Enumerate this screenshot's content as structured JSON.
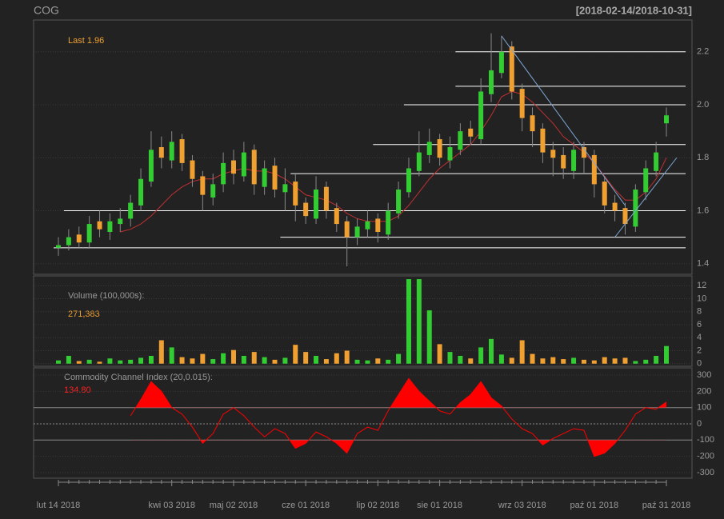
{
  "chart_data": [
    {
      "type": "candlestick",
      "title": "COG",
      "date_range": "[2018-02-14/2018-10-31]",
      "annotation": "Last 1.96",
      "categories": [
        "lut 14 2018",
        null,
        null,
        null,
        null,
        null,
        null,
        null,
        null,
        null,
        null,
        "kwi 03 2018",
        null,
        null,
        null,
        null,
        null,
        "maj 02 2018",
        null,
        null,
        null,
        null,
        null,
        null,
        "cze 01 2018",
        null,
        null,
        null,
        null,
        null,
        null,
        "lip 02 2018",
        null,
        null,
        null,
        null,
        null,
        "sie 01 2018",
        null,
        null,
        null,
        null,
        null,
        null,
        null,
        "wrz 03 2018",
        null,
        null,
        null,
        null,
        null,
        null,
        "paź 01 2018",
        null,
        null,
        null,
        null,
        null,
        null,
        "paź 31 2018"
      ],
      "open": [
        1.46,
        1.47,
        1.51,
        1.48,
        1.56,
        1.52,
        1.55,
        1.57,
        1.62,
        1.71,
        1.84,
        1.79,
        1.87,
        1.79,
        1.73,
        1.65,
        1.7,
        1.79,
        1.73,
        1.83,
        1.69,
        1.77,
        1.67,
        1.71,
        1.63,
        1.57,
        1.69,
        1.61,
        1.56,
        1.5,
        1.53,
        1.57,
        1.51,
        1.59,
        1.67,
        1.75,
        1.81,
        1.87,
        1.79,
        1.83,
        1.91,
        1.87,
        2.04,
        2.12,
        2.22,
        2.06,
        1.96,
        1.91,
        1.83,
        1.81,
        1.75,
        1.84,
        1.81,
        1.71,
        1.63,
        1.61,
        1.54,
        1.67,
        1.75,
        1.93
      ],
      "high": [
        1.5,
        1.53,
        1.54,
        1.58,
        1.6,
        1.59,
        1.61,
        1.66,
        1.76,
        1.9,
        1.88,
        1.9,
        1.89,
        1.81,
        1.75,
        1.74,
        1.82,
        1.83,
        1.86,
        1.85,
        1.79,
        1.8,
        1.76,
        1.74,
        1.65,
        1.73,
        1.71,
        1.63,
        1.58,
        1.57,
        1.6,
        1.59,
        1.63,
        1.71,
        1.8,
        1.9,
        1.91,
        1.89,
        1.88,
        1.93,
        1.94,
        2.1,
        2.27,
        2.26,
        2.24,
        2.08,
        1.99,
        1.93,
        1.86,
        1.84,
        1.86,
        1.86,
        1.83,
        1.73,
        1.66,
        1.63,
        1.7,
        1.79,
        1.86,
        1.99
      ],
      "low": [
        1.43,
        1.45,
        1.46,
        1.46,
        1.5,
        1.49,
        1.52,
        1.54,
        1.6,
        1.69,
        1.76,
        1.76,
        1.75,
        1.69,
        1.6,
        1.62,
        1.67,
        1.7,
        1.71,
        1.66,
        1.66,
        1.65,
        1.6,
        1.56,
        1.55,
        1.55,
        1.57,
        1.52,
        1.39,
        1.47,
        1.5,
        1.48,
        1.49,
        1.57,
        1.65,
        1.73,
        1.78,
        1.77,
        1.76,
        1.81,
        1.85,
        1.85,
        2.01,
        2.1,
        2.02,
        1.9,
        1.84,
        1.78,
        1.73,
        1.72,
        1.72,
        1.74,
        1.65,
        1.59,
        1.56,
        1.51,
        1.52,
        1.64,
        1.73,
        1.88
      ],
      "close": [
        1.47,
        1.5,
        1.48,
        1.55,
        1.53,
        1.56,
        1.57,
        1.63,
        1.72,
        1.83,
        1.8,
        1.86,
        1.78,
        1.72,
        1.66,
        1.7,
        1.78,
        1.74,
        1.82,
        1.7,
        1.76,
        1.68,
        1.7,
        1.62,
        1.58,
        1.68,
        1.6,
        1.55,
        1.5,
        1.54,
        1.56,
        1.52,
        1.6,
        1.68,
        1.76,
        1.82,
        1.86,
        1.8,
        1.84,
        1.9,
        1.88,
        2.05,
        2.13,
        2.2,
        2.05,
        1.95,
        1.9,
        1.82,
        1.8,
        1.76,
        1.83,
        1.8,
        1.7,
        1.62,
        1.6,
        1.55,
        1.68,
        1.76,
        1.82,
        1.96
      ],
      "up_color": "#33cc33",
      "down_color": "#f0a030",
      "ma": {
        "color": "#c03030",
        "values": [
          null,
          null,
          null,
          null,
          null,
          null,
          1.52,
          1.53,
          1.55,
          1.58,
          1.62,
          1.66,
          1.69,
          1.71,
          1.72,
          1.72,
          1.74,
          1.75,
          1.76,
          1.75,
          1.75,
          1.74,
          1.72,
          1.69,
          1.66,
          1.65,
          1.64,
          1.62,
          1.59,
          1.57,
          1.56,
          1.56,
          1.56,
          1.58,
          1.62,
          1.67,
          1.72,
          1.76,
          1.79,
          1.82,
          1.85,
          1.9,
          1.96,
          2.03,
          2.05,
          2.04,
          2.01,
          1.97,
          1.93,
          1.88,
          1.85,
          1.82,
          1.78,
          1.73,
          1.68,
          1.64,
          1.64,
          1.67,
          1.72,
          1.8
        ]
      },
      "hlines": [
        {
          "y": 1.46,
          "from": 0
        },
        {
          "y": 1.5,
          "from": 22
        },
        {
          "y": 1.6,
          "from": 1
        },
        {
          "y": 1.74,
          "from": 23
        },
        {
          "y": 1.85,
          "from": 31
        },
        {
          "y": 2.0,
          "from": 34
        },
        {
          "y": 2.07,
          "from": 39
        },
        {
          "y": 2.2,
          "from": 39
        }
      ],
      "trendlines": [
        {
          "x": [
            43,
            55
          ],
          "y": [
            2.26,
            1.62
          ]
        },
        {
          "x": [
            54,
            60
          ],
          "y": [
            1.5,
            1.8
          ]
        }
      ],
      "ylim": [
        1.36,
        2.32
      ],
      "yticks": [
        1.4,
        1.6,
        1.8,
        {
          "value": 2,
          "label": "2.0"
        },
        2.2
      ],
      "grid": true
    },
    {
      "type": "bar",
      "annotation": "Volume (100,000s):",
      "last_label": "271,383",
      "values": [
        0.5,
        1.2,
        0.4,
        0.6,
        0.3,
        0.8,
        0.5,
        0.6,
        0.9,
        1.2,
        3.6,
        2.5,
        1.0,
        0.8,
        1.5,
        0.7,
        1.6,
        2.1,
        1.2,
        1.8,
        1.0,
        0.6,
        0.9,
        2.9,
        1.8,
        1.2,
        0.7,
        1.6,
        2.0,
        0.6,
        0.5,
        0.8,
        0.6,
        1.5,
        13.0,
        13.0,
        8.2,
        3.0,
        1.8,
        1.2,
        0.8,
        2.5,
        3.8,
        1.4,
        0.9,
        3.6,
        1.5,
        0.8,
        1.0,
        0.7,
        0.9,
        0.6,
        0.5,
        1.0,
        0.8,
        0.9,
        0.4,
        0.6,
        1.2,
        2.71
      ],
      "ylim": [
        -0.4,
        13.5
      ],
      "yticks": [
        0,
        2,
        4,
        6,
        8,
        10,
        12
      ],
      "grid": true
    },
    {
      "type": "line",
      "annotation": "Commodity Channel Index (20,0.015):",
      "last_label": "134.80",
      "color": "#ff0000",
      "values": [
        null,
        null,
        null,
        null,
        null,
        null,
        null,
        50,
        150,
        260,
        200,
        100,
        60,
        -20,
        -120,
        -60,
        60,
        100,
        50,
        -20,
        -80,
        -30,
        -60,
        -150,
        -120,
        -50,
        -80,
        -120,
        -180,
        -60,
        -20,
        -40,
        80,
        180,
        280,
        200,
        140,
        80,
        60,
        130,
        180,
        260,
        160,
        110,
        30,
        -30,
        -60,
        -130,
        -90,
        -60,
        -30,
        -40,
        -200,
        -180,
        -120,
        -40,
        60,
        100,
        90,
        134.8
      ],
      "ylim": [
        -335,
        345
      ],
      "yticks": [
        -300,
        -200,
        -100,
        0,
        100,
        200,
        300
      ],
      "levels": [
        100,
        0,
        -100
      ],
      "grid": true
    }
  ]
}
